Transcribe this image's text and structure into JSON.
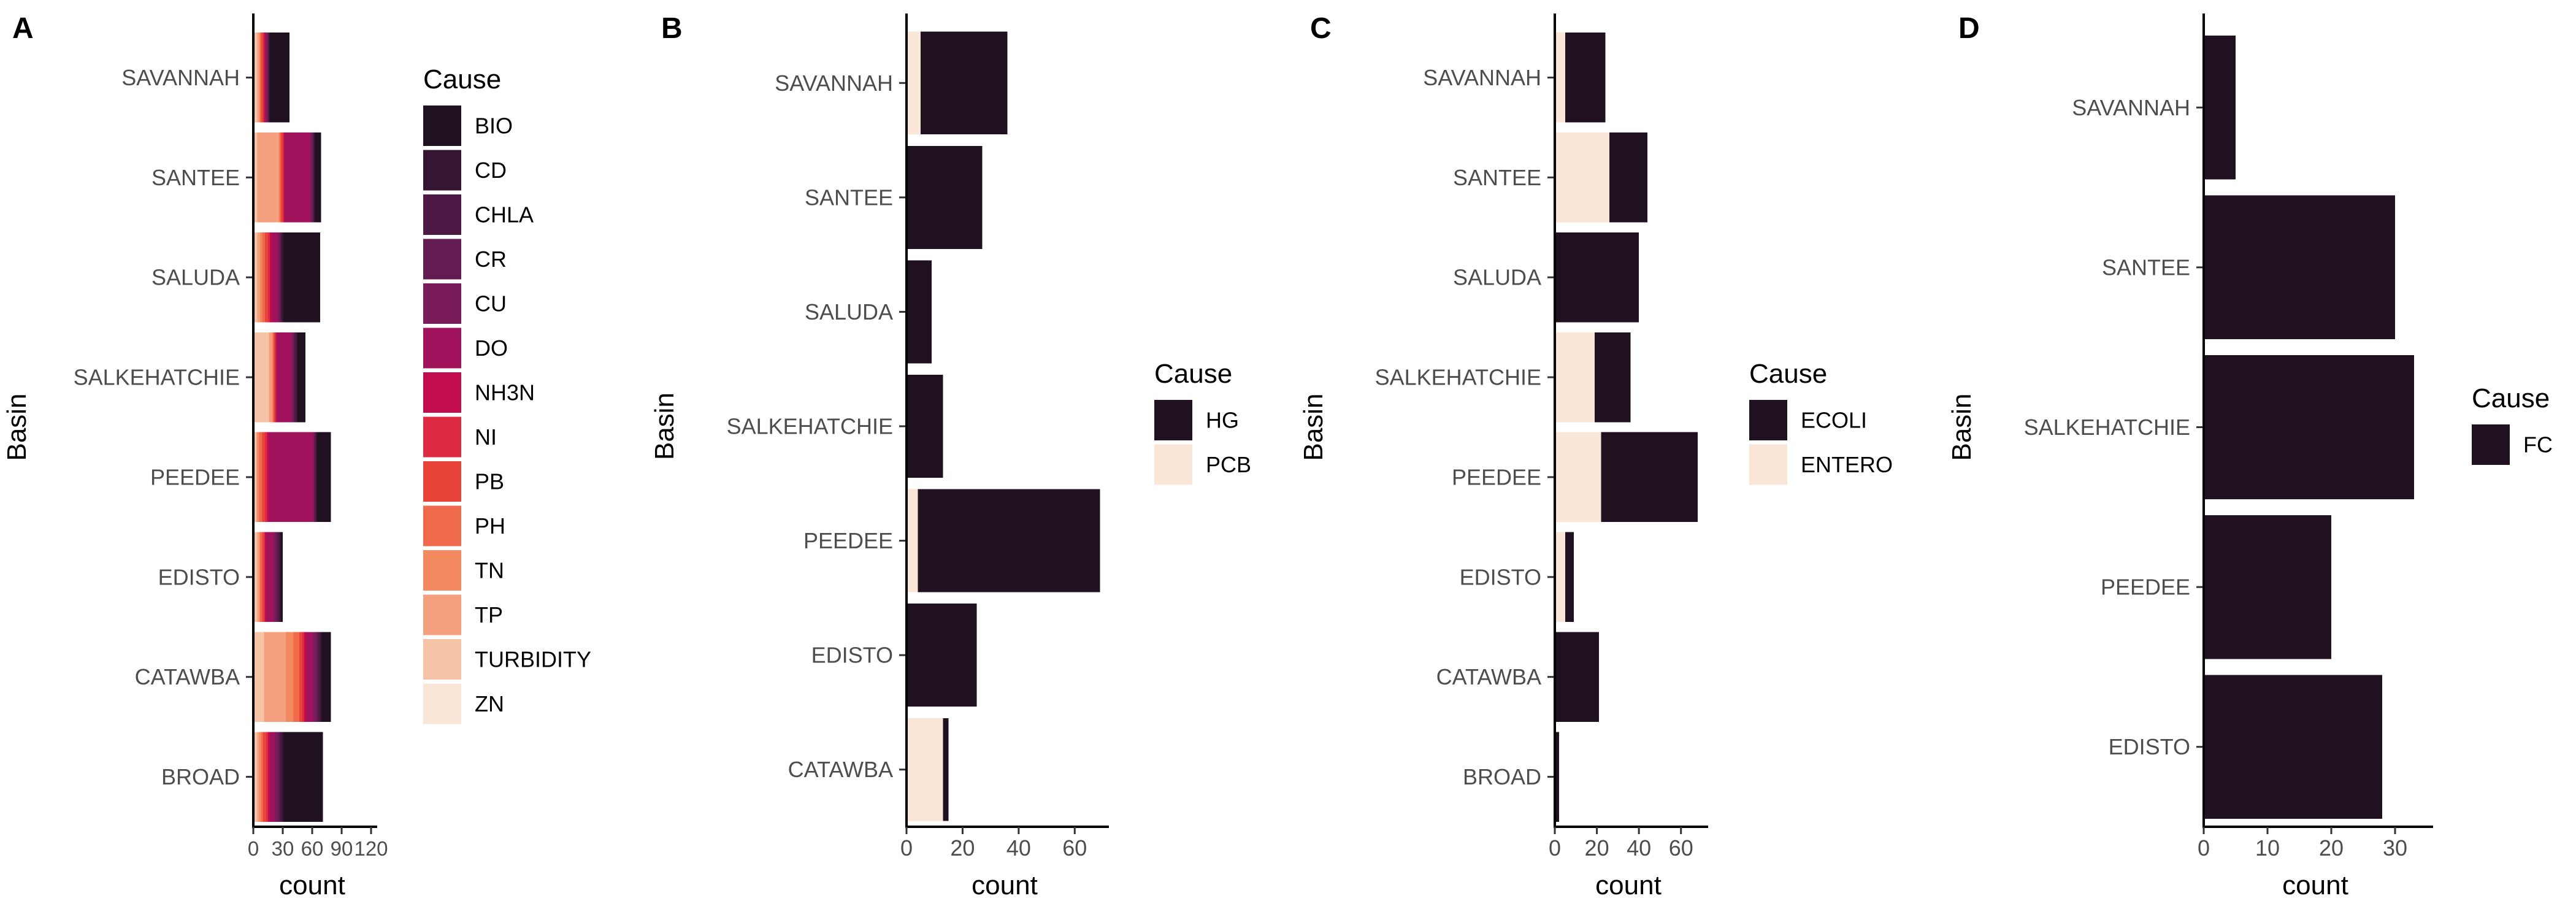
{
  "figure": {
    "panel_labels": [
      "A",
      "B",
      "C",
      "D"
    ]
  },
  "chart_data": [
    {
      "type": "bar",
      "orientation": "horizontal",
      "stacked": true,
      "panel": "A",
      "xlabel": "count",
      "ylabel": "Basin",
      "xlim": [
        0,
        120
      ],
      "xticks": [
        0,
        30,
        60,
        90,
        120
      ],
      "categories": [
        "SAVANNAH",
        "SANTEE",
        "SALUDA",
        "SALKEHATCHIE",
        "PEEDEE",
        "EDISTO",
        "CATAWBA",
        "BROAD"
      ],
      "legend": {
        "title": "Cause",
        "placement": "right"
      },
      "series": [
        {
          "name": "BIO",
          "color": "#1f111f",
          "values": [
            20,
            6,
            37,
            8,
            14,
            2,
            9,
            40
          ]
        },
        {
          "name": "CD",
          "color": "#351532",
          "values": [
            1,
            1,
            2,
            1,
            1,
            1,
            2,
            2
          ]
        },
        {
          "name": "CHLA",
          "color": "#4c1a44",
          "values": [
            1,
            1,
            1,
            2,
            1,
            2,
            2,
            2
          ]
        },
        {
          "name": "CR",
          "color": "#621c51",
          "values": [
            0,
            1,
            1,
            1,
            1,
            2,
            2,
            2
          ]
        },
        {
          "name": "CU",
          "color": "#7a1c5a",
          "values": [
            2,
            2,
            2,
            2,
            1,
            2,
            3,
            3
          ]
        },
        {
          "name": "DO",
          "color": "#a0135c",
          "values": [
            1,
            26,
            6,
            15,
            45,
            8,
            7,
            5
          ]
        },
        {
          "name": "NH3N",
          "color": "#c10d4d",
          "values": [
            1,
            1,
            2,
            1,
            2,
            1,
            2,
            2
          ]
        },
        {
          "name": "NI",
          "color": "#dd2b41",
          "values": [
            1,
            1,
            2,
            1,
            2,
            1,
            2,
            2
          ]
        },
        {
          "name": "PB",
          "color": "#e8443a",
          "values": [
            2,
            2,
            3,
            1,
            3,
            2,
            3,
            3
          ]
        },
        {
          "name": "PH",
          "color": "#ef6a4a",
          "values": [
            1,
            1,
            3,
            1,
            3,
            2,
            6,
            2
          ]
        },
        {
          "name": "TN",
          "color": "#f38a5f",
          "values": [
            1,
            1,
            2,
            1,
            2,
            1,
            8,
            2
          ]
        },
        {
          "name": "TP",
          "color": "#f4a07e",
          "values": [
            2,
            22,
            3,
            3,
            1,
            2,
            22,
            2
          ]
        },
        {
          "name": "TURBIDITY",
          "color": "#f5c3a6",
          "values": [
            3,
            3,
            3,
            15,
            2,
            3,
            10,
            3
          ]
        },
        {
          "name": "ZN",
          "color": "#f9e6d7",
          "values": [
            1,
            1,
            1,
            1,
            1,
            1,
            1,
            1
          ]
        }
      ]
    },
    {
      "type": "bar",
      "orientation": "horizontal",
      "stacked": true,
      "panel": "B",
      "xlabel": "count",
      "ylabel": "Basin",
      "xlim": [
        0,
        70
      ],
      "xticks": [
        0,
        20,
        40,
        60
      ],
      "categories": [
        "SAVANNAH",
        "SANTEE",
        "SALUDA",
        "SALKEHATCHIE",
        "PEEDEE",
        "EDISTO",
        "CATAWBA"
      ],
      "legend": {
        "title": "Cause",
        "placement": "right"
      },
      "series": [
        {
          "name": "HG",
          "color": "#1f111f",
          "values": [
            31,
            27,
            9,
            13,
            65,
            25,
            2
          ]
        },
        {
          "name": "PCB",
          "color": "#f9e6d7",
          "values": [
            5,
            0,
            0,
            0,
            4,
            0,
            13
          ]
        }
      ]
    },
    {
      "type": "bar",
      "orientation": "horizontal",
      "stacked": true,
      "panel": "C",
      "xlabel": "count",
      "ylabel": "Basin",
      "xlim": [
        0,
        70
      ],
      "xticks": [
        0,
        20,
        40,
        60
      ],
      "categories": [
        "SAVANNAH",
        "SANTEE",
        "SALUDA",
        "SALKEHATCHIE",
        "PEEDEE",
        "EDISTO",
        "CATAWBA",
        "BROAD"
      ],
      "legend": {
        "title": "Cause",
        "placement": "right"
      },
      "series": [
        {
          "name": "ECOLI",
          "color": "#1f111f",
          "values": [
            19,
            18,
            40,
            17,
            46,
            4,
            21,
            2
          ]
        },
        {
          "name": "ENTERO",
          "color": "#f9e6d7",
          "values": [
            5,
            26,
            0,
            19,
            22,
            5,
            0,
            0
          ]
        }
      ]
    },
    {
      "type": "bar",
      "orientation": "horizontal",
      "stacked": true,
      "panel": "D",
      "xlabel": "count",
      "ylabel": "Basin",
      "xlim": [
        0,
        35
      ],
      "xticks": [
        0,
        10,
        20,
        30
      ],
      "categories": [
        "SAVANNAH",
        "SANTEE",
        "SALKEHATCHIE",
        "PEEDEE",
        "EDISTO"
      ],
      "legend": {
        "title": "Cause",
        "placement": "right"
      },
      "series": [
        {
          "name": "FC",
          "color": "#1f111f",
          "values": [
            5,
            30,
            33,
            20,
            28
          ]
        }
      ]
    }
  ]
}
